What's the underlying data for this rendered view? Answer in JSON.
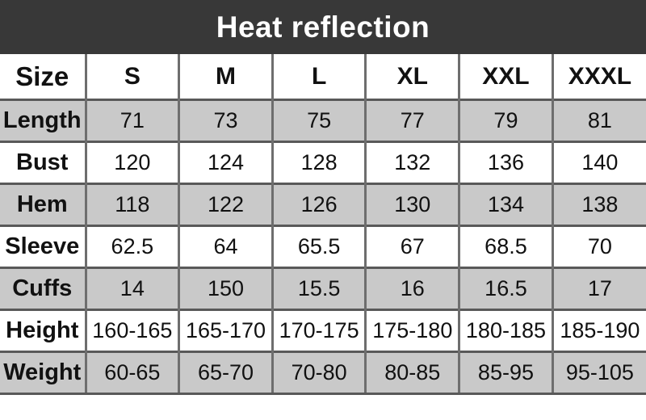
{
  "title": "Heat reflection",
  "colors": {
    "banner_bg": "#383838",
    "title_text": "#ffffff",
    "row_bg": "#ffffff",
    "row_alt_bg": "#c9c9c9",
    "border_horizontal": "#595959",
    "border_vertical": "#6e6e6e",
    "text": "#111111"
  },
  "chart_data": {
    "type": "table",
    "title": "Heat reflection",
    "header_label": "Size",
    "columns": [
      "S",
      "M",
      "L",
      "XL",
      "XXL",
      "XXXL"
    ],
    "rows": [
      {
        "label": "Length",
        "values": [
          "71",
          "73",
          "75",
          "77",
          "79",
          "81"
        ]
      },
      {
        "label": "Bust",
        "values": [
          "120",
          "124",
          "128",
          "132",
          "136",
          "140"
        ]
      },
      {
        "label": "Hem",
        "values": [
          "118",
          "122",
          "126",
          "130",
          "134",
          "138"
        ]
      },
      {
        "label": "Sleeve",
        "values": [
          "62.5",
          "64",
          "65.5",
          "67",
          "68.5",
          "70"
        ]
      },
      {
        "label": "Cuffs",
        "values": [
          "14",
          "150",
          "15.5",
          "16",
          "16.5",
          "17"
        ]
      },
      {
        "label": "Height",
        "values": [
          "160-165",
          "165-170",
          "170-175",
          "175-180",
          "180-185",
          "185-190"
        ]
      },
      {
        "label": "Weight",
        "values": [
          "60-65",
          "65-70",
          "70-80",
          "80-85",
          "85-95",
          "95-105"
        ]
      }
    ]
  }
}
